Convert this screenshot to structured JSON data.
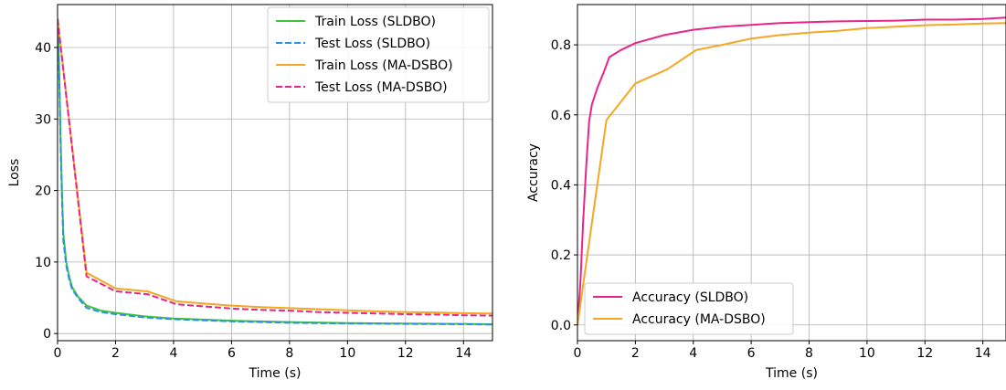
{
  "chart_data": [
    {
      "type": "line",
      "xlabel": "Time (s)",
      "ylabel": "Loss",
      "xlim": [
        0,
        15
      ],
      "ylim": [
        -1,
        46
      ],
      "xticks": [
        0,
        2,
        4,
        6,
        8,
        10,
        12,
        14
      ],
      "yticks": [
        0,
        10,
        20,
        30,
        40
      ],
      "grid": true,
      "legend_position": "top-right",
      "series": [
        {
          "name": "Train Loss (SLDBO)",
          "color": "#3cc43c",
          "dash": "solid",
          "x": [
            0,
            0.05,
            0.1,
            0.15,
            0.2,
            0.3,
            0.4,
            0.5,
            0.7,
            1.0,
            1.5,
            2.0,
            3.0,
            4.0,
            5.0,
            6.0,
            8.0,
            10.0,
            12.0,
            14.0,
            15.0
          ],
          "y": [
            44,
            38,
            28,
            20,
            14,
            10,
            8,
            6.5,
            5.2,
            3.9,
            3.2,
            2.9,
            2.4,
            2.1,
            1.95,
            1.8,
            1.6,
            1.45,
            1.4,
            1.35,
            1.3
          ]
        },
        {
          "name": "Test Loss (SLDBO)",
          "color": "#2f8fe8",
          "dash": "dashed",
          "x": [
            0,
            0.05,
            0.1,
            0.15,
            0.2,
            0.3,
            0.4,
            0.5,
            0.7,
            1.0,
            1.5,
            2.0,
            3.0,
            4.0,
            5.0,
            6.0,
            8.0,
            10.0,
            12.0,
            14.0,
            15.0
          ],
          "y": [
            44,
            37,
            27,
            19,
            13,
            9.5,
            7.6,
            6.2,
            5.0,
            3.6,
            3.0,
            2.7,
            2.25,
            2.0,
            1.85,
            1.7,
            1.5,
            1.4,
            1.35,
            1.3,
            1.25
          ]
        },
        {
          "name": "Train Loss (MA-DSBO)",
          "color": "#f5a623",
          "dash": "solid",
          "x": [
            0,
            1.0,
            2.0,
            3.1,
            4.1,
            5.0,
            6.0,
            7.0,
            8.0,
            9.0,
            10.0,
            11.0,
            12.0,
            13.0,
            14.0,
            15.0
          ],
          "y": [
            44,
            8.5,
            6.3,
            5.9,
            4.5,
            4.2,
            3.9,
            3.7,
            3.55,
            3.4,
            3.25,
            3.1,
            3.0,
            2.95,
            2.85,
            2.8
          ]
        },
        {
          "name": "Test Loss (MA-DSBO)",
          "color": "#e8248c",
          "dash": "dashed",
          "x": [
            0,
            1.0,
            2.0,
            3.1,
            4.1,
            5.0,
            6.0,
            7.0,
            8.0,
            9.0,
            10.0,
            11.0,
            12.0,
            13.0,
            14.0,
            15.0
          ],
          "y": [
            44,
            8.0,
            5.9,
            5.5,
            4.1,
            3.8,
            3.5,
            3.3,
            3.2,
            3.0,
            2.9,
            2.8,
            2.7,
            2.65,
            2.55,
            2.5
          ]
        }
      ]
    },
    {
      "type": "line",
      "xlabel": "Time (s)",
      "ylabel": "Accuracy",
      "xlim": [
        0,
        14.8
      ],
      "ylim": [
        -0.045,
        0.915
      ],
      "xticks": [
        0,
        2,
        4,
        6,
        8,
        10,
        12,
        14
      ],
      "yticks": [
        0.0,
        0.2,
        0.4,
        0.6,
        0.8
      ],
      "ytick_labels": [
        "0.0",
        "0.2",
        "0.4",
        "0.6",
        "0.8"
      ],
      "grid": true,
      "legend_position": "bottom-left",
      "series": [
        {
          "name": "Accuracy (SLDBO)",
          "color": "#e8248c",
          "dash": "solid",
          "x": [
            0,
            0.1,
            0.2,
            0.3,
            0.4,
            0.5,
            0.7,
            0.9,
            1.1,
            1.5,
            2.0,
            3.0,
            4.0,
            5.0,
            6.0,
            7.0,
            8.0,
            9.0,
            10.0,
            11.0,
            12.0,
            13.0,
            14.0,
            14.8
          ],
          "y": [
            0.0,
            0.12,
            0.3,
            0.45,
            0.58,
            0.63,
            0.68,
            0.72,
            0.765,
            0.785,
            0.805,
            0.828,
            0.843,
            0.852,
            0.857,
            0.862,
            0.865,
            0.867,
            0.868,
            0.869,
            0.872,
            0.872,
            0.874,
            0.878
          ]
        },
        {
          "name": "Accuracy (MA-DSBO)",
          "color": "#f5a623",
          "dash": "solid",
          "x": [
            0,
            1.0,
            2.0,
            3.1,
            4.1,
            5.0,
            6.0,
            7.0,
            8.0,
            9.0,
            10.0,
            11.0,
            12.0,
            13.0,
            14.0,
            14.8
          ],
          "y": [
            0.0,
            0.585,
            0.69,
            0.73,
            0.785,
            0.8,
            0.818,
            0.828,
            0.835,
            0.84,
            0.848,
            0.852,
            0.856,
            0.858,
            0.861,
            0.862
          ]
        }
      ]
    }
  ]
}
